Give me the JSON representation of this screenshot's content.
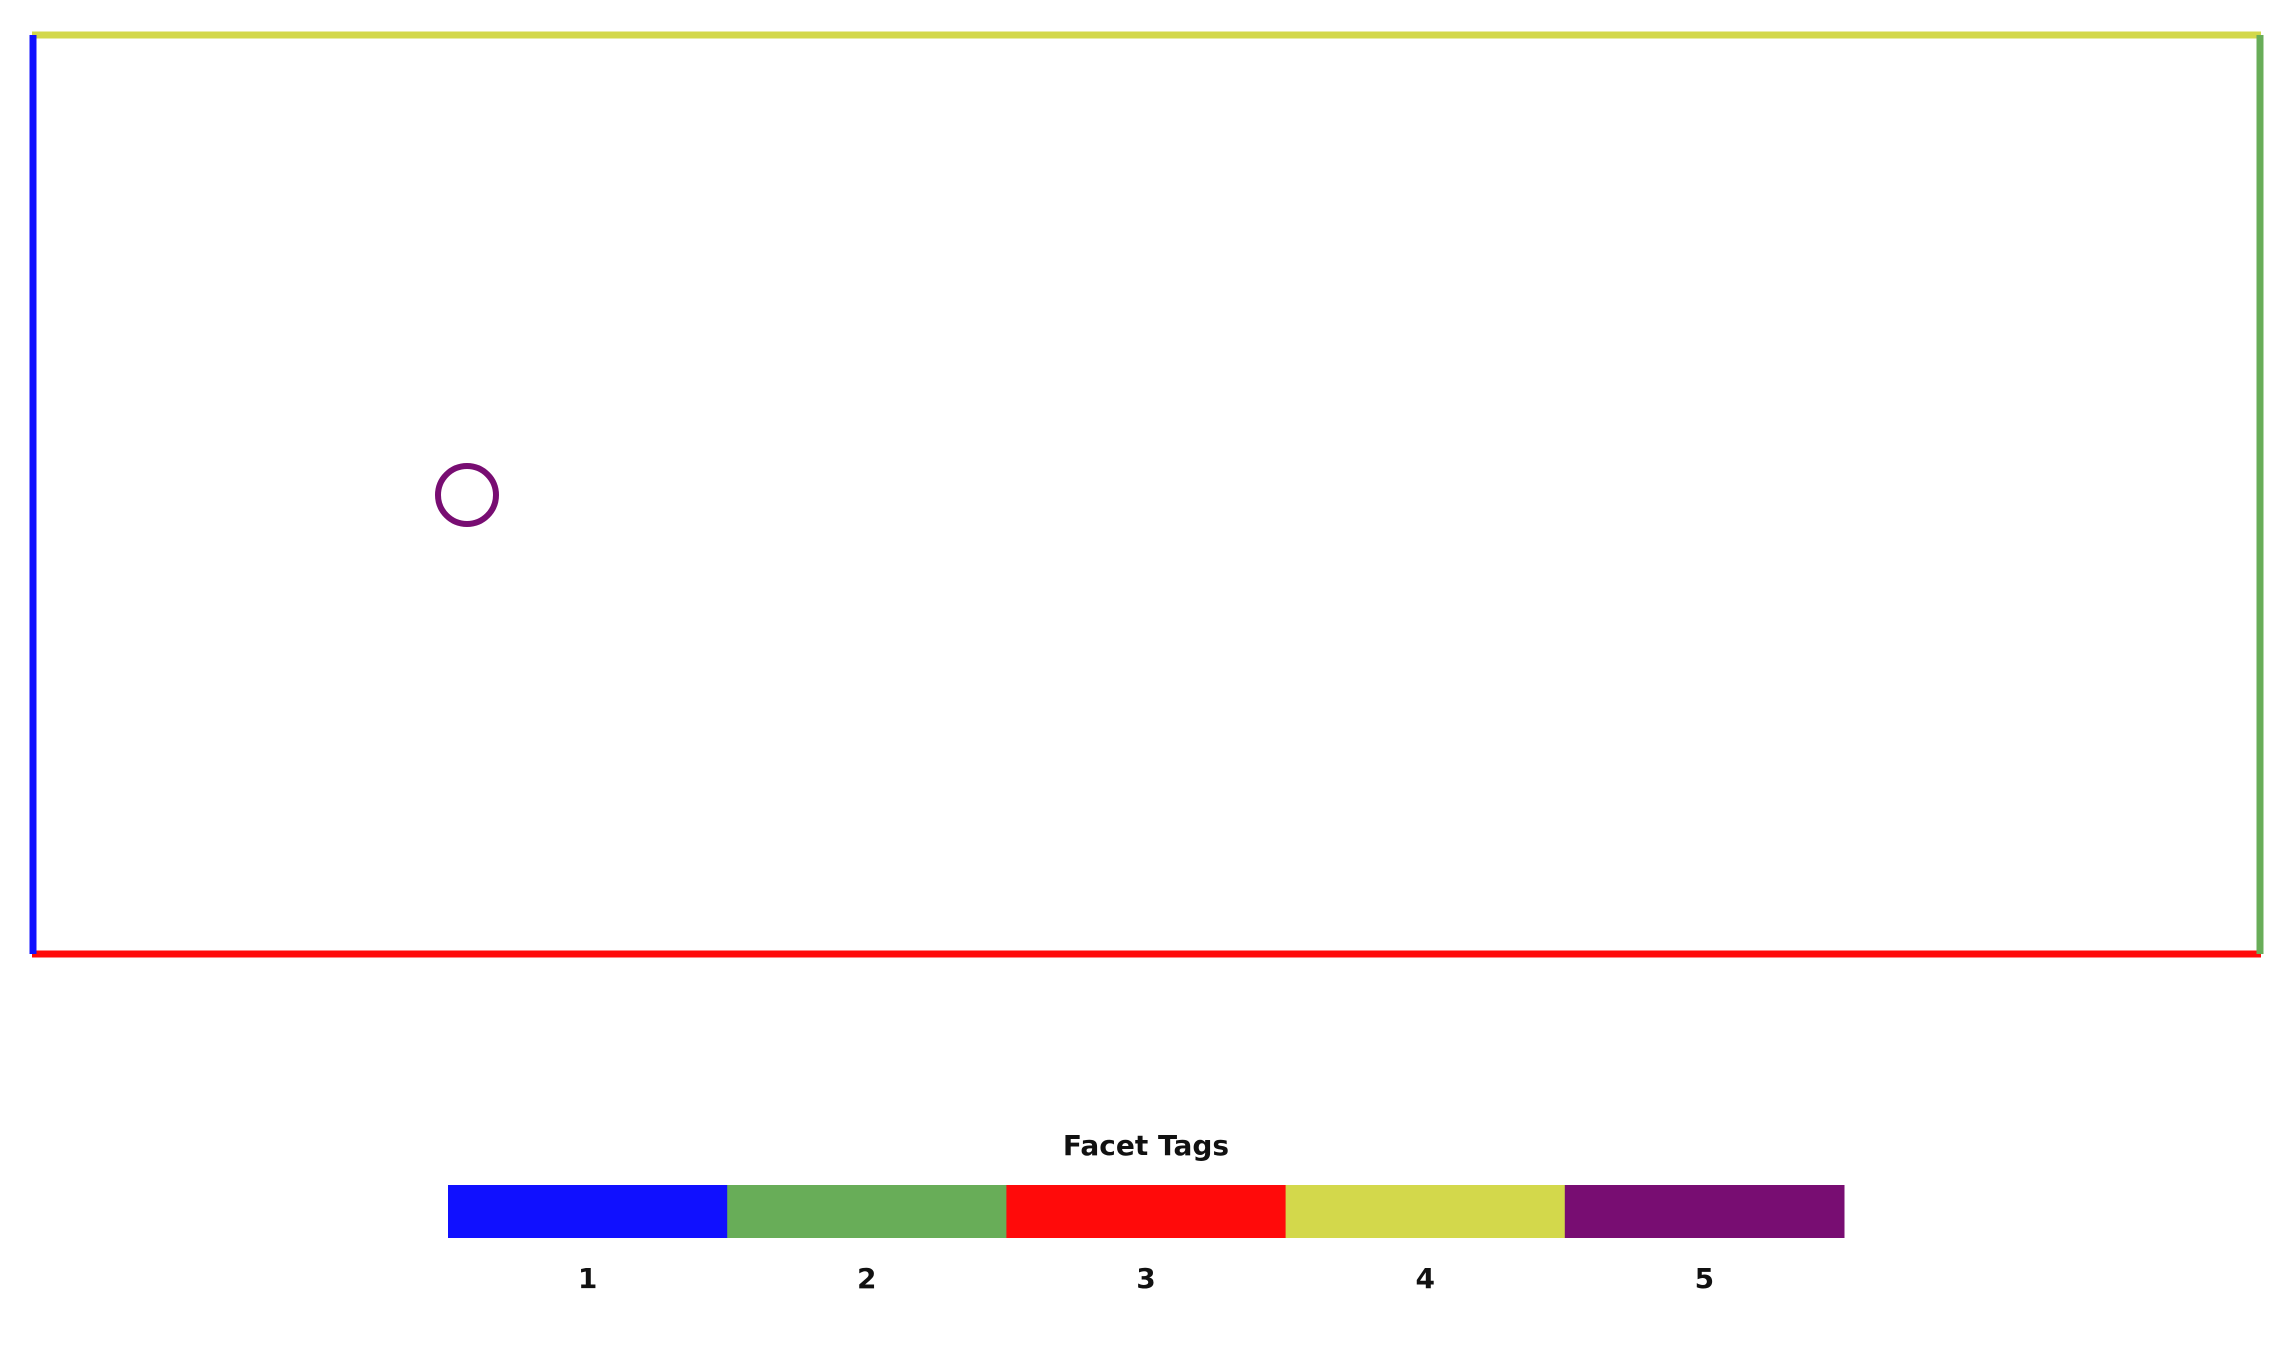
{
  "domain_view": {
    "facets": [
      {
        "name": "left-edge",
        "tag": 1,
        "color": "#1010ff"
      },
      {
        "name": "right-edge",
        "tag": 2,
        "color": "#68ad58"
      },
      {
        "name": "bottom-edge",
        "tag": 3,
        "color": "#ff0a0a"
      },
      {
        "name": "top-edge",
        "tag": 4,
        "color": "#d3d84b"
      },
      {
        "name": "circle-hole",
        "tag": 5,
        "color": "#780d72"
      }
    ]
  },
  "colorbar": {
    "title": "Facet Tags",
    "entries": [
      {
        "label": "1",
        "color": "#1010ff"
      },
      {
        "label": "2",
        "color": "#68ad58"
      },
      {
        "label": "3",
        "color": "#ff0a0a"
      },
      {
        "label": "4",
        "color": "#d3d84b"
      },
      {
        "label": "5",
        "color": "#780d72"
      }
    ]
  }
}
